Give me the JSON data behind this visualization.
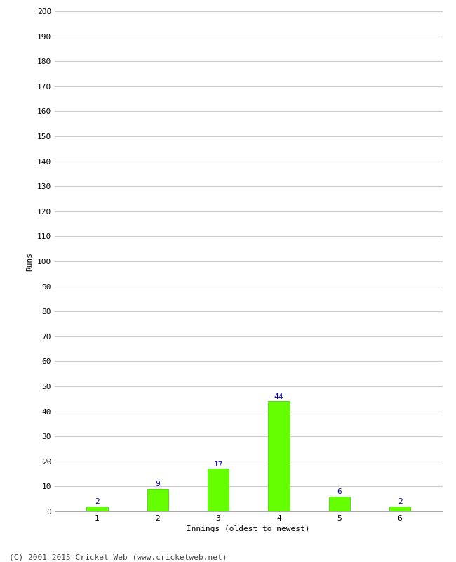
{
  "categories": [
    "1",
    "2",
    "3",
    "4",
    "5",
    "6"
  ],
  "values": [
    2,
    9,
    17,
    44,
    6,
    2
  ],
  "bar_color": "#66ff00",
  "bar_edge_color": "#33cc00",
  "label_color": "#0000cc",
  "ylabel": "Runs",
  "xlabel": "Innings (oldest to newest)",
  "ylim": [
    0,
    200
  ],
  "yticks": [
    0,
    10,
    20,
    30,
    40,
    50,
    60,
    70,
    80,
    90,
    100,
    110,
    120,
    130,
    140,
    150,
    160,
    170,
    180,
    190,
    200
  ],
  "footer": "(C) 2001-2015 Cricket Web (www.cricketweb.net)",
  "background_color": "#ffffff",
  "grid_color": "#cccccc",
  "label_fontsize": 8,
  "axis_fontsize": 8,
  "ylabel_fontsize": 8,
  "footer_fontsize": 8,
  "bar_width": 0.35
}
